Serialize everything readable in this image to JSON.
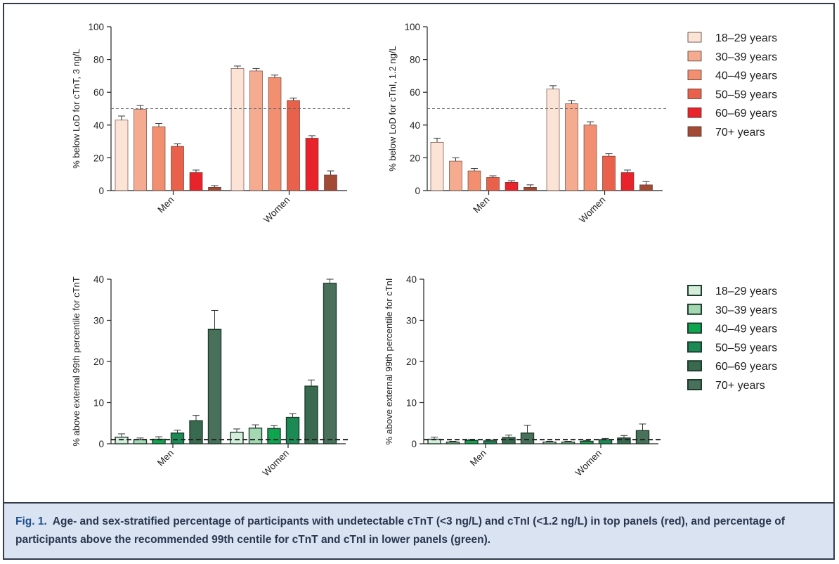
{
  "caption": {
    "label": "Fig. 1.",
    "text": "Age- and sex-stratified percentage of participants with undetectable cTnT (<3 ng/L) and cTnI (<1.2 ng/L) in top panels (red), and percentage of participants above the recommended 99th centile for cTnT and cTnI in lower panels (green)."
  },
  "legends": {
    "red": {
      "labels": [
        "18–29 years",
        "30–39 years",
        "40–49 years",
        "50–59 years",
        "60–69 years",
        "70+ years"
      ],
      "colors": [
        "#fbe3d6",
        "#f5ab8f",
        "#f18f70",
        "#e9614a",
        "#e8232b",
        "#a24a36"
      ]
    },
    "green": {
      "labels": [
        "18–29 years",
        "30–39 years",
        "40–49 years",
        "50–59 years",
        "60–69 years",
        "70+ years"
      ],
      "colors": [
        "#d4eedb",
        "#a3d8b2",
        "#0fa54e",
        "#1c8a55",
        "#39694e",
        "#49705a"
      ]
    }
  },
  "chart_data": [
    {
      "type": "bar",
      "ylabel": "% below LoD for cTnT, 3 ng/L",
      "categories": [
        "Men",
        "Women"
      ],
      "ylim": [
        0,
        100
      ],
      "yticks": [
        0,
        20,
        40,
        60,
        80,
        100
      ],
      "reference_line": 50,
      "palette": "red",
      "series": [
        {
          "name": "18–29 years",
          "values": [
            43,
            74.5
          ],
          "errors": [
            2.5,
            1.5
          ]
        },
        {
          "name": "30–39 years",
          "values": [
            49.5,
            73
          ],
          "errors": [
            2.5,
            1.5
          ]
        },
        {
          "name": "40–49 years",
          "values": [
            39,
            69
          ],
          "errors": [
            2.0,
            1.5
          ]
        },
        {
          "name": "50–59 years",
          "values": [
            27,
            55
          ],
          "errors": [
            1.5,
            1.5
          ]
        },
        {
          "name": "60–69 years",
          "values": [
            11,
            32
          ],
          "errors": [
            1.5,
            1.5
          ]
        },
        {
          "name": "70+ years",
          "values": [
            2,
            9.5
          ],
          "errors": [
            1.0,
            2.5
          ]
        }
      ]
    },
    {
      "type": "bar",
      "ylabel": "% below LoD for cTnI, 1.2 ng/L",
      "categories": [
        "Men",
        "Women"
      ],
      "ylim": [
        0,
        100
      ],
      "yticks": [
        0,
        20,
        40,
        60,
        80,
        100
      ],
      "reference_line": 50,
      "palette": "red",
      "series": [
        {
          "name": "18–29 years",
          "values": [
            29.5,
            62
          ],
          "errors": [
            2.5,
            2.0
          ]
        },
        {
          "name": "30–39 years",
          "values": [
            18,
            53
          ],
          "errors": [
            2.0,
            2.0
          ]
        },
        {
          "name": "40–49 years",
          "values": [
            12,
            40
          ],
          "errors": [
            1.5,
            2.0
          ]
        },
        {
          "name": "50–59 years",
          "values": [
            8,
            21
          ],
          "errors": [
            1.0,
            1.5
          ]
        },
        {
          "name": "60–69 years",
          "values": [
            5,
            11
          ],
          "errors": [
            1.0,
            1.5
          ]
        },
        {
          "name": "70+ years",
          "values": [
            2,
            3.5
          ],
          "errors": [
            1.5,
            2.0
          ]
        }
      ]
    },
    {
      "type": "bar",
      "ylabel": "% above external 99th percentile for cTnT",
      "categories": [
        "Men",
        "Women"
      ],
      "ylim": [
        0,
        40
      ],
      "yticks": [
        0,
        10,
        20,
        30,
        40
      ],
      "reference_line": 1,
      "palette": "green",
      "series": [
        {
          "name": "18–29 years",
          "values": [
            1.6,
            2.8
          ],
          "errors": [
            0.8,
            0.8
          ]
        },
        {
          "name": "30–39 years",
          "values": [
            1.0,
            3.8
          ],
          "errors": [
            0.4,
            0.8
          ]
        },
        {
          "name": "40–49 years",
          "values": [
            1.1,
            3.7
          ],
          "errors": [
            0.6,
            0.7
          ]
        },
        {
          "name": "50–59 years",
          "values": [
            2.6,
            6.4
          ],
          "errors": [
            0.7,
            0.9
          ]
        },
        {
          "name": "60–69 years",
          "values": [
            5.6,
            14
          ],
          "errors": [
            1.3,
            1.5
          ]
        },
        {
          "name": "70+ years",
          "values": [
            27.8,
            39
          ],
          "errors": [
            4.6,
            1.0
          ]
        }
      ]
    },
    {
      "type": "bar",
      "ylabel": "% above external 99th percentile for cTnI",
      "categories": [
        "Men",
        "Women"
      ],
      "ylim": [
        0,
        40
      ],
      "yticks": [
        0,
        10,
        20,
        30,
        40
      ],
      "reference_line": 1,
      "palette": "green",
      "series": [
        {
          "name": "18–29 years",
          "values": [
            1.1,
            0.4
          ],
          "errors": [
            0.5,
            0.2
          ]
        },
        {
          "name": "30–39 years",
          "values": [
            0.4,
            0.4
          ],
          "errors": [
            0.2,
            0.2
          ]
        },
        {
          "name": "40–49 years",
          "values": [
            0.8,
            0.6
          ],
          "errors": [
            0.3,
            0.2
          ]
        },
        {
          "name": "50–59 years",
          "values": [
            0.7,
            1.0
          ],
          "errors": [
            0.2,
            0.3
          ]
        },
        {
          "name": "60–69 years",
          "values": [
            1.5,
            1.4
          ],
          "errors": [
            0.6,
            0.6
          ]
        },
        {
          "name": "70+ years",
          "values": [
            2.6,
            3.2
          ],
          "errors": [
            1.9,
            1.6
          ]
        }
      ]
    }
  ]
}
